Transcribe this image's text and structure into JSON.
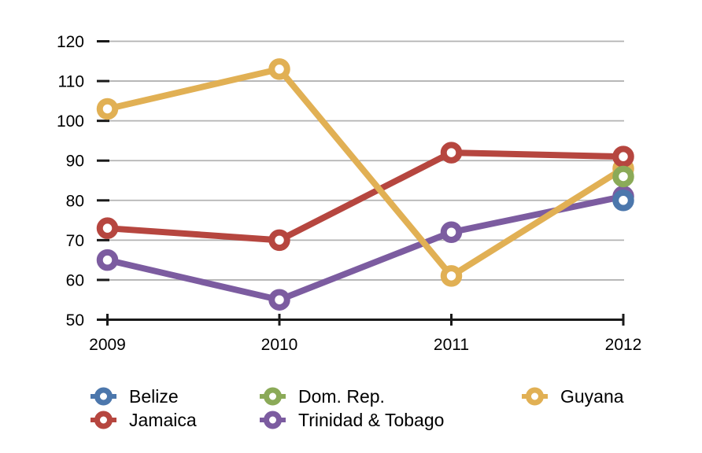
{
  "chart_data": {
    "type": "line",
    "title": "",
    "xlabel": "",
    "ylabel": "",
    "x_categories": [
      "2009",
      "2010",
      "2011",
      "2012"
    ],
    "series": [
      {
        "name": "Belize",
        "color": "#4C77AC",
        "values": [
          null,
          null,
          null,
          80
        ]
      },
      {
        "name": "Dom. Rep.",
        "color": "#8BAA58",
        "values": [
          null,
          null,
          null,
          86
        ]
      },
      {
        "name": "Guyana",
        "color": "#E1B054",
        "values": [
          103,
          113,
          61,
          88
        ]
      },
      {
        "name": "Jamaica",
        "color": "#B6463F",
        "values": [
          73,
          70,
          92,
          91
        ]
      },
      {
        "name": "Trinidad & Tobago",
        "color": "#7C5CA0",
        "values": [
          65,
          55,
          72,
          81
        ]
      }
    ],
    "ylim": [
      50,
      120
    ],
    "yticks": [
      50,
      60,
      70,
      80,
      90,
      100,
      110,
      120
    ],
    "grid": "horizontal",
    "legend_position": "bottom",
    "legend_rows": [
      [
        "Belize",
        "Dom. Rep.",
        "Guyana"
      ],
      [
        "Jamaica",
        "Trinidad & Tobago"
      ]
    ]
  },
  "style_colors": {
    "axis": "#1a1a1a",
    "gridline": "#b3b3b3",
    "label_text": "#000000",
    "marker_fill": "#ffffff",
    "background": "#ffffff"
  }
}
